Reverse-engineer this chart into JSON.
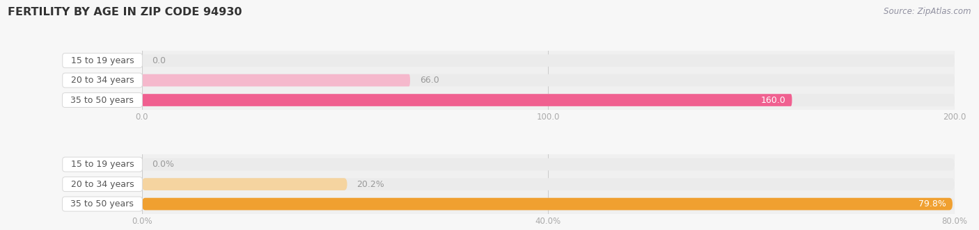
{
  "title": "FERTILITY BY AGE IN ZIP CODE 94930",
  "source": "Source: ZipAtlas.com",
  "top_chart": {
    "categories": [
      "15 to 19 years",
      "20 to 34 years",
      "35 to 50 years"
    ],
    "values": [
      0.0,
      66.0,
      160.0
    ],
    "xlim": [
      0,
      200
    ],
    "xticks": [
      0.0,
      100.0,
      200.0
    ],
    "bar_color_15": "#f5b8cc",
    "bar_color_20": "#f5b8cc",
    "bar_color_35": "#f06090",
    "bar_bg_color": "#ebebeb",
    "label_circle_15": "#e8809a",
    "label_circle_20": "#e8809a",
    "label_circle_35": "#e8506e"
  },
  "bottom_chart": {
    "categories": [
      "15 to 19 years",
      "20 to 34 years",
      "35 to 50 years"
    ],
    "values": [
      0.0,
      20.2,
      79.8
    ],
    "xlim": [
      0,
      80
    ],
    "xticks": [
      0.0,
      40.0,
      80.0
    ],
    "bar_color_15": "#f5d4a0",
    "bar_color_20": "#f5d4a0",
    "bar_color_35": "#f0a030",
    "bar_bg_color": "#ebebeb",
    "label_circle_15": "#e8a840",
    "label_circle_20": "#e8a840",
    "label_circle_35": "#e89020"
  },
  "fig_bg_color": "#f7f7f7",
  "chart_bg_color": "#f0f0f0",
  "label_box_color": "#ffffff",
  "label_text_color": "#555555",
  "title_color": "#333333",
  "source_color": "#9090a0",
  "tick_label_color": "#aaaaaa",
  "value_label_color_inside": "#ffffff",
  "value_label_color_outside": "#999999"
}
